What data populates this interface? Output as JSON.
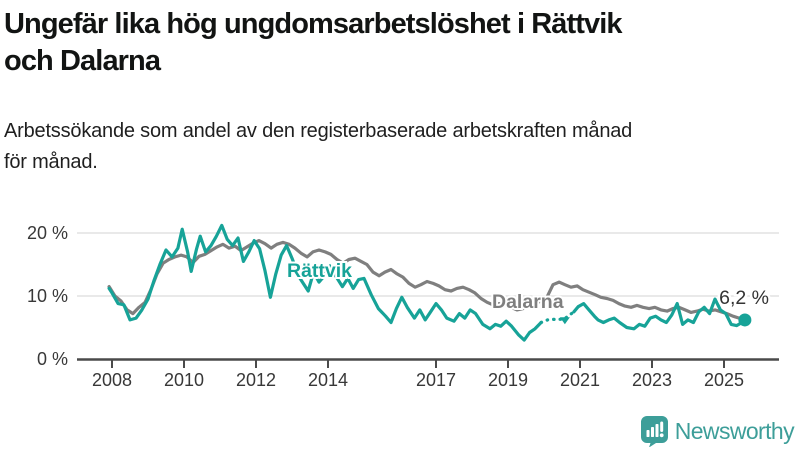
{
  "header": {
    "title_line1": "Ungefär lika hög ungdomsarbetslöshet i Rättvik",
    "title_line2": "och Dalarna",
    "subtitle_line1": "Arbetssökande som andel av den registerbaserade arbetskraften månad",
    "subtitle_line2": "för månad."
  },
  "colors": {
    "rattvik": "#17A398",
    "dalarna": "#7F7F7F",
    "grid": "#E2E2E2",
    "axis": "#4A4A4A",
    "axis_text": "#383838",
    "end_label_text": "#333333",
    "brand": "#3D9E99"
  },
  "chart_data": {
    "type": "line",
    "title": "Ungefär lika hög ungdomsarbetslöshet i Rättvik och Dalarna",
    "subtitle": "Arbetssökande som andel av den registerbaserade arbetskraften månad för månad.",
    "unit": "%",
    "grid": "horizontal",
    "legend_position": "inline-labels",
    "x_axis": {
      "ticks": [
        2008,
        2010,
        2012,
        2014,
        2017,
        2019,
        2021,
        2023,
        2025
      ],
      "range": [
        2007.3,
        2025.9
      ]
    },
    "y_axis": {
      "ticks": [
        {
          "value": 0,
          "label": "0 %"
        },
        {
          "value": 10,
          "label": "10 %"
        },
        {
          "value": 20,
          "label": "20 %"
        }
      ],
      "range": [
        0,
        22
      ]
    },
    "series": [
      {
        "name": "Rättvik",
        "color_key": "rattvik",
        "end_label": "6,2 %",
        "end_value": 6.2,
        "end_dot": true,
        "dashed_range": [
          2019.92,
          2020.83
        ],
        "gap_marker": {
          "x": 2020.58,
          "value": 6.3
        },
        "points": [
          [
            2007.92,
            11.2
          ],
          [
            2008.0,
            10.5
          ],
          [
            2008.17,
            8.8
          ],
          [
            2008.33,
            8.6
          ],
          [
            2008.5,
            6.2
          ],
          [
            2008.67,
            6.5
          ],
          [
            2008.83,
            7.8
          ],
          [
            2009.0,
            9.5
          ],
          [
            2009.17,
            12.5
          ],
          [
            2009.33,
            15.0
          ],
          [
            2009.5,
            17.3
          ],
          [
            2009.67,
            16.2
          ],
          [
            2009.83,
            17.6
          ],
          [
            2009.95,
            20.6
          ],
          [
            2010.1,
            17.0
          ],
          [
            2010.2,
            13.9
          ],
          [
            2010.35,
            17.5
          ],
          [
            2010.45,
            19.5
          ],
          [
            2010.6,
            17.0
          ],
          [
            2010.75,
            18.0
          ],
          [
            2010.9,
            19.5
          ],
          [
            2011.05,
            21.2
          ],
          [
            2011.2,
            19.0
          ],
          [
            2011.35,
            18.0
          ],
          [
            2011.5,
            19.2
          ],
          [
            2011.65,
            15.5
          ],
          [
            2011.8,
            17.0
          ],
          [
            2011.95,
            18.8
          ],
          [
            2012.1,
            17.5
          ],
          [
            2012.25,
            14.0
          ],
          [
            2012.4,
            9.8
          ],
          [
            2012.55,
            13.5
          ],
          [
            2012.7,
            16.5
          ],
          [
            2012.85,
            18.0
          ],
          [
            2013.0,
            16.0
          ],
          [
            2013.2,
            13.0
          ],
          [
            2013.45,
            10.8
          ],
          [
            2013.6,
            13.8
          ],
          [
            2013.75,
            12.2
          ],
          [
            2013.9,
            13.2
          ],
          [
            2014.05,
            14.8
          ],
          [
            2014.2,
            13.3
          ],
          [
            2014.4,
            11.5
          ],
          [
            2014.55,
            12.8
          ],
          [
            2014.7,
            11.2
          ],
          [
            2014.85,
            12.6
          ],
          [
            2015.0,
            12.8
          ],
          [
            2015.2,
            10.2
          ],
          [
            2015.4,
            8.0
          ],
          [
            2015.6,
            6.8
          ],
          [
            2015.75,
            5.8
          ],
          [
            2015.9,
            8.0
          ],
          [
            2016.05,
            9.8
          ],
          [
            2016.2,
            8.2
          ],
          [
            2016.4,
            6.5
          ],
          [
            2016.55,
            7.8
          ],
          [
            2016.7,
            6.2
          ],
          [
            2016.85,
            7.5
          ],
          [
            2017.0,
            8.8
          ],
          [
            2017.15,
            7.8
          ],
          [
            2017.3,
            6.5
          ],
          [
            2017.5,
            6.0
          ],
          [
            2017.65,
            7.2
          ],
          [
            2017.8,
            6.5
          ],
          [
            2017.95,
            7.8
          ],
          [
            2018.1,
            7.2
          ],
          [
            2018.3,
            5.5
          ],
          [
            2018.5,
            4.8
          ],
          [
            2018.65,
            5.5
          ],
          [
            2018.8,
            5.2
          ],
          [
            2018.95,
            6.0
          ],
          [
            2019.1,
            5.2
          ],
          [
            2019.3,
            3.8
          ],
          [
            2019.45,
            3.0
          ],
          [
            2019.6,
            4.2
          ],
          [
            2019.75,
            4.8
          ],
          [
            2019.92,
            5.8
          ],
          [
            2020.1,
            6.2
          ],
          [
            2020.3,
            6.3
          ],
          [
            2020.55,
            6.3
          ],
          [
            2020.83,
            7.5
          ],
          [
            2020.95,
            8.3
          ],
          [
            2021.1,
            8.8
          ],
          [
            2021.25,
            7.8
          ],
          [
            2021.4,
            6.8
          ],
          [
            2021.5,
            6.2
          ],
          [
            2021.65,
            5.8
          ],
          [
            2021.8,
            6.2
          ],
          [
            2021.95,
            6.5
          ],
          [
            2022.1,
            5.8
          ],
          [
            2022.3,
            5.0
          ],
          [
            2022.5,
            4.8
          ],
          [
            2022.65,
            5.5
          ],
          [
            2022.8,
            5.2
          ],
          [
            2022.95,
            6.5
          ],
          [
            2023.1,
            6.8
          ],
          [
            2023.25,
            6.2
          ],
          [
            2023.4,
            5.8
          ],
          [
            2023.55,
            7.0
          ],
          [
            2023.7,
            8.8
          ],
          [
            2023.85,
            5.5
          ],
          [
            2024.0,
            6.2
          ],
          [
            2024.15,
            5.8
          ],
          [
            2024.3,
            7.5
          ],
          [
            2024.45,
            8.2
          ],
          [
            2024.6,
            7.2
          ],
          [
            2024.75,
            9.5
          ],
          [
            2024.9,
            7.8
          ],
          [
            2025.05,
            7.2
          ],
          [
            2025.2,
            5.5
          ],
          [
            2025.35,
            5.3
          ],
          [
            2025.5,
            5.8
          ],
          [
            2025.58,
            6.2
          ]
        ]
      },
      {
        "name": "Dalarna",
        "color_key": "dalarna",
        "points": [
          [
            2007.92,
            11.5
          ],
          [
            2008.08,
            10.0
          ],
          [
            2008.25,
            9.2
          ],
          [
            2008.42,
            7.8
          ],
          [
            2008.58,
            7.2
          ],
          [
            2008.75,
            8.2
          ],
          [
            2008.92,
            9.0
          ],
          [
            2009.08,
            11.0
          ],
          [
            2009.25,
            13.5
          ],
          [
            2009.42,
            15.2
          ],
          [
            2009.58,
            15.8
          ],
          [
            2009.75,
            16.2
          ],
          [
            2009.92,
            16.5
          ],
          [
            2010.08,
            16.2
          ],
          [
            2010.25,
            15.3
          ],
          [
            2010.42,
            16.3
          ],
          [
            2010.58,
            16.6
          ],
          [
            2010.75,
            17.2
          ],
          [
            2010.92,
            17.8
          ],
          [
            2011.08,
            18.2
          ],
          [
            2011.25,
            17.6
          ],
          [
            2011.42,
            17.9
          ],
          [
            2011.58,
            17.2
          ],
          [
            2011.75,
            17.8
          ],
          [
            2011.92,
            18.4
          ],
          [
            2012.08,
            18.8
          ],
          [
            2012.25,
            18.3
          ],
          [
            2012.42,
            17.6
          ],
          [
            2012.58,
            18.2
          ],
          [
            2012.75,
            18.5
          ],
          [
            2012.92,
            18.2
          ],
          [
            2013.08,
            17.6
          ],
          [
            2013.25,
            16.8
          ],
          [
            2013.42,
            16.2
          ],
          [
            2013.58,
            17.0
          ],
          [
            2013.75,
            17.3
          ],
          [
            2013.92,
            17.0
          ],
          [
            2014.08,
            16.6
          ],
          [
            2014.25,
            15.8
          ],
          [
            2014.42,
            15.2
          ],
          [
            2014.58,
            15.8
          ],
          [
            2014.75,
            16.0
          ],
          [
            2014.92,
            15.5
          ],
          [
            2015.08,
            15.0
          ],
          [
            2015.25,
            13.8
          ],
          [
            2015.42,
            13.2
          ],
          [
            2015.58,
            13.8
          ],
          [
            2015.75,
            14.2
          ],
          [
            2015.92,
            13.5
          ],
          [
            2016.08,
            13.0
          ],
          [
            2016.25,
            12.0
          ],
          [
            2016.42,
            11.4
          ],
          [
            2016.58,
            11.8
          ],
          [
            2016.75,
            12.3
          ],
          [
            2016.92,
            12.0
          ],
          [
            2017.08,
            11.6
          ],
          [
            2017.25,
            11.0
          ],
          [
            2017.42,
            10.8
          ],
          [
            2017.58,
            11.2
          ],
          [
            2017.75,
            11.4
          ],
          [
            2017.92,
            11.0
          ],
          [
            2018.08,
            10.5
          ],
          [
            2018.25,
            9.6
          ],
          [
            2018.42,
            9.0
          ],
          [
            2018.58,
            8.6
          ],
          [
            2018.75,
            8.8
          ],
          [
            2018.92,
            8.5
          ],
          [
            2019.08,
            8.2
          ],
          [
            2019.25,
            7.8
          ],
          [
            2019.42,
            8.0
          ],
          [
            2019.58,
            8.5
          ],
          [
            2019.75,
            8.8
          ],
          [
            2019.92,
            9.2
          ],
          [
            2020.08,
            9.8
          ],
          [
            2020.25,
            11.8
          ],
          [
            2020.42,
            12.2
          ],
          [
            2020.58,
            11.8
          ],
          [
            2020.75,
            11.4
          ],
          [
            2020.92,
            11.6
          ],
          [
            2021.08,
            11.0
          ],
          [
            2021.25,
            10.6
          ],
          [
            2021.42,
            10.2
          ],
          [
            2021.58,
            9.8
          ],
          [
            2021.75,
            9.6
          ],
          [
            2021.92,
            9.3
          ],
          [
            2022.08,
            8.8
          ],
          [
            2022.25,
            8.4
          ],
          [
            2022.42,
            8.2
          ],
          [
            2022.58,
            8.5
          ],
          [
            2022.75,
            8.2
          ],
          [
            2022.92,
            8.0
          ],
          [
            2023.08,
            8.2
          ],
          [
            2023.25,
            7.8
          ],
          [
            2023.42,
            7.6
          ],
          [
            2023.58,
            8.0
          ],
          [
            2023.75,
            8.2
          ],
          [
            2023.92,
            7.8
          ],
          [
            2024.08,
            7.4
          ],
          [
            2024.25,
            7.6
          ],
          [
            2024.42,
            7.9
          ],
          [
            2024.58,
            7.6
          ],
          [
            2024.75,
            7.8
          ],
          [
            2024.92,
            7.5
          ],
          [
            2025.08,
            7.2
          ],
          [
            2025.25,
            6.8
          ],
          [
            2025.42,
            6.5
          ],
          [
            2025.58,
            6.6
          ]
        ]
      }
    ]
  },
  "footer": {
    "brand": "Newsworthy"
  }
}
